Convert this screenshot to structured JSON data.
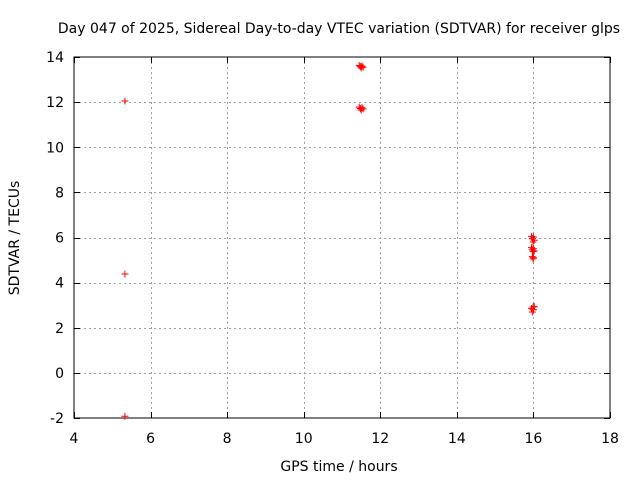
{
  "chart_data": {
    "type": "scatter",
    "title": "Day 047 of 2025, Sidereal Day-to-day VTEC variation (SDTVAR) for receiver glps",
    "xlabel": "GPS time / hours",
    "ylabel": "SDTVAR / TECUs",
    "xlim": [
      4,
      18
    ],
    "ylim": [
      -2,
      14
    ],
    "xticks": [
      4,
      6,
      8,
      10,
      12,
      14,
      16,
      18
    ],
    "yticks": [
      -2,
      0,
      2,
      4,
      6,
      8,
      10,
      12,
      14
    ],
    "xtick_labels": [
      "4",
      "6",
      "8",
      "10",
      "12",
      "14",
      "16",
      "18"
    ],
    "ytick_labels": [
      "-2",
      "0",
      "2",
      "4",
      "6",
      "8",
      "10",
      "12",
      "14"
    ],
    "grid": true,
    "marker": "+",
    "color": "#ff0000",
    "series": [
      {
        "name": "SDTVAR",
        "x": [
          5.33,
          5.33,
          5.33,
          11.45,
          11.48,
          11.5,
          11.52,
          11.55,
          11.45,
          11.48,
          11.5,
          11.52,
          11.55,
          15.95,
          15.97,
          15.99,
          16.0,
          16.02,
          15.95,
          15.97,
          15.99,
          16.0,
          16.02,
          15.97,
          15.99,
          16.0,
          15.95,
          15.97,
          15.99,
          16.0,
          16.02
        ],
        "y": [
          12.05,
          4.38,
          -1.92,
          13.62,
          13.58,
          13.52,
          13.6,
          13.55,
          11.78,
          11.72,
          11.65,
          11.75,
          11.7,
          6.05,
          5.95,
          5.8,
          6.02,
          5.88,
          5.55,
          5.45,
          5.38,
          5.5,
          5.4,
          5.15,
          5.05,
          5.1,
          2.85,
          2.7,
          2.92,
          2.8,
          2.95
        ]
      }
    ]
  }
}
